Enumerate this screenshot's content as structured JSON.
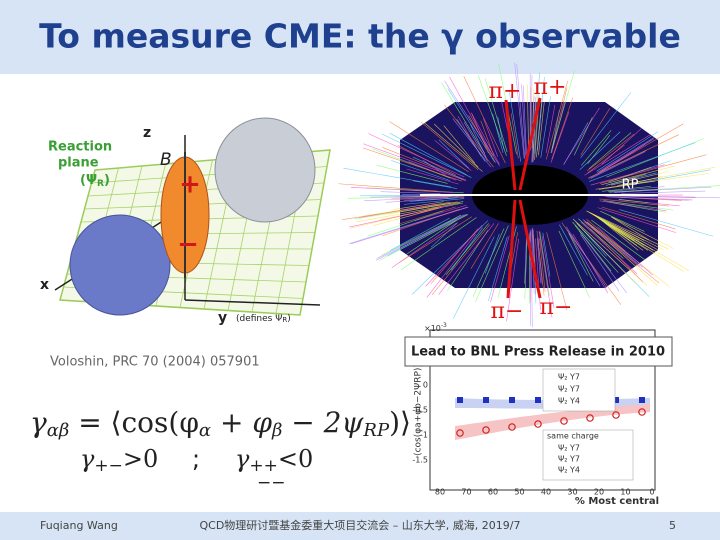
{
  "title": "To measure CME: the γ observable",
  "diagram": {
    "reaction_plane": "Reaction",
    "reaction_plane_2": "plane",
    "psi": "(Ψ",
    "psi_sub": "R",
    "psi_close": ")",
    "z": "z",
    "b_field": "B",
    "x": "x",
    "y": "y",
    "defines": "(defines Ψ",
    "defines_sub": "R",
    "defines_close": ")",
    "plus": "+",
    "minus": "−"
  },
  "citation": "Voloshin, PRC 70 (2004) 057901",
  "formula": {
    "lhs": "γ",
    "lhs_sub": "αβ",
    "rhs": " = ⟨cos(φ",
    "a_sub": "α",
    "plus": " + φ",
    "b_sub": "β",
    "minus": " − 2ψ",
    "rp_sub": "RP",
    "close": ")⟩",
    "opposite": "γ",
    "opposite_sub": "+−",
    "opposite_rel": ">0",
    "separator": ";",
    "same": "γ",
    "same_sub": "++",
    "same_sub_alt": "−−",
    "same_rel": "<0"
  },
  "event_display": {
    "pi_plus_1": "π+",
    "pi_plus_2": "π+",
    "rp": "RP",
    "pi_minus_1": "π−",
    "pi_minus_2": "π−"
  },
  "press_release": "Lead to BNL Press Release in 2010",
  "plot": {
    "scale": "×10",
    "scale_exp": "-3",
    "y_label": "⟨cos(φa+φb−2ΨRP)⟩",
    "yticks": [
      "0",
      "-0.5",
      "-1",
      "-1.5"
    ],
    "xticks": [
      "80",
      "70",
      "60",
      "50",
      "40",
      "30",
      "20",
      "10",
      "0"
    ],
    "x_label": "% Most central",
    "legend_top": [
      "Ψ₂ Y7",
      "Ψ₂ Y7",
      "Ψ₂ Y4"
    ],
    "same_charge": "same charge",
    "legend_bottom": [
      "Ψ₂ Y7",
      "Ψ₂ Y7",
      "Ψ₂ Y4"
    ]
  },
  "footer": {
    "author": "Fuqiang Wang",
    "event": "QCD物理研讨暨基金委重大项目交流会 – 山东大学, 威海, 2019/7",
    "page": "5"
  }
}
